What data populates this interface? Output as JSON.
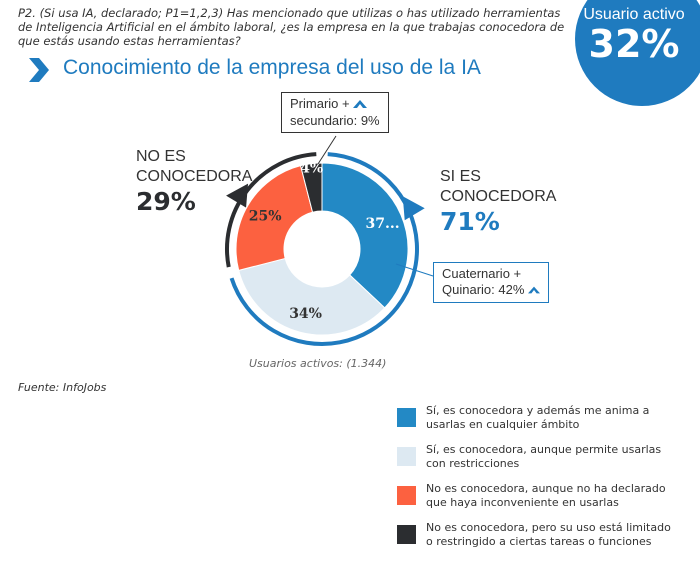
{
  "question": "P2. (Si usa IA, declarado; P1=1,2,3) Has mencionado que utilizas o has utilizado herramientas de Inteligencia Artificial en el ámbito laboral, ¿es la empresa en la que trabajas conocedora de que estás usando estas herramientas?",
  "badge": {
    "label": "Usuario activo",
    "value": "32%"
  },
  "title": "Conocimiento de la empresa del uso de la IA",
  "groups": {
    "no": {
      "label_line1": "NO ES",
      "label_line2": "CONOCEDORA",
      "value": "29%"
    },
    "si": {
      "label_line1": "SI ES",
      "label_line2": "CONOCEDORA",
      "value": "71%"
    }
  },
  "callouts": {
    "primario": {
      "line1": "Primario +",
      "line2": "secundario: 9%",
      "icon": "chevron-up-icon"
    },
    "cuaternario": {
      "line1": "Cuaternario +",
      "line2": "Quinario: 42%",
      "icon": "chevron-up-icon"
    }
  },
  "base_note": "Usuarios activos: (1.344)",
  "source": "Fuente: InfoJobs",
  "colors": {
    "accent": "#1f7bbf",
    "dark": "#2b2d30",
    "orange": "#fc6140",
    "light": "#dde9f2",
    "blue": "#2389c5"
  },
  "chart_data": {
    "type": "pie",
    "title": "Conocimiento de la empresa del uso de la IA",
    "donut": true,
    "slices": [
      {
        "name": "Sí, es conocedora y además me anima a usarlas en cualquier ámbito",
        "value": 37,
        "label": "37...",
        "color": "#2389c5",
        "label_color": "#ffffff"
      },
      {
        "name": "Sí, es conocedora, aunque permite usarlas con restricciones",
        "value": 34,
        "label": "34%",
        "color": "#dde9f2",
        "label_color": "#333333"
      },
      {
        "name": "No es conocedora, aunque no ha declarado que haya inconveniente en usarlas",
        "value": 25,
        "label": "25%",
        "color": "#fc6140",
        "label_color": "#333333"
      },
      {
        "name": "No es conocedora, pero su uso está limitado o restringido a ciertas tareas o funciones",
        "value": 4,
        "label": "4%",
        "color": "#2b2d30",
        "label_color": "#ffffff"
      }
    ],
    "groups": [
      {
        "name": "SI ES CONOCEDORA",
        "value": 71,
        "color": "#1f7bbf"
      },
      {
        "name": "NO ES CONOCEDORA",
        "value": 29,
        "color": "#2b2d30"
      }
    ],
    "legend_position": "bottom-right"
  },
  "legend": [
    {
      "line1": "Sí, es conocedora y además me anima a",
      "line2": "usarlas en cualquier ámbito",
      "color": "#2389c5"
    },
    {
      "line1": "Sí, es conocedora, aunque permite usarlas",
      "line2": "con restricciones",
      "color": "#dde9f2"
    },
    {
      "line1": "No es conocedora, aunque no ha declarado",
      "line2": "que haya inconveniente en usarlas",
      "color": "#fc6140"
    },
    {
      "line1": "No es conocedora, pero su uso está limitado",
      "line2": "o restringido a ciertas tareas o funciones",
      "color": "#2b2d30"
    }
  ]
}
